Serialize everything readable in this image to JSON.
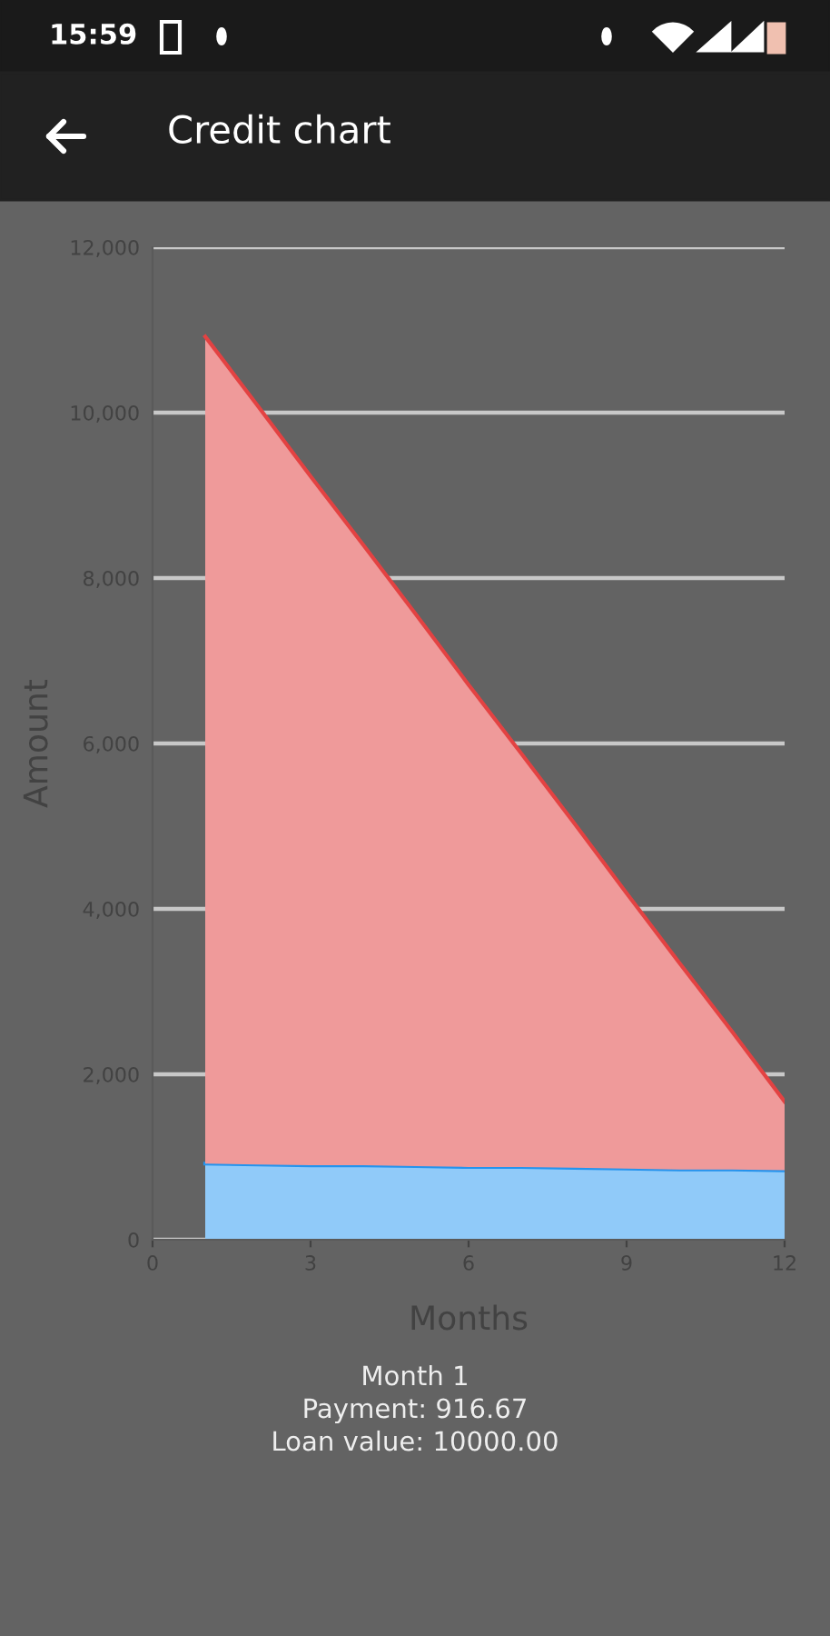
{
  "chart_data": {
    "type": "area",
    "title": "Credit chart",
    "xlabel": "Months",
    "ylabel": "Amount",
    "annotations": [
      "15:59",
      "Month 1",
      "Payment: 916.67",
      "Loan value: 10000.00"
    ],
    "x": [
      1,
      2,
      3,
      4,
      5,
      6,
      7,
      8,
      9,
      10,
      11,
      12
    ],
    "stacked": true,
    "series": [
      {
        "color": "#90caf9",
        "values": [
          920,
          910,
          900,
          900,
          890,
          880,
          880,
          870,
          860,
          850,
          850,
          840
        ]
      },
      {
        "color": "#ef9a9a",
        "values": [
          10000,
          9170,
          8330,
          7500,
          6670,
          5830,
          5000,
          4170,
          3330,
          2500,
          1670,
          830
        ]
      }
    ],
    "xlim": [
      0,
      12
    ],
    "xticks": [
      0,
      3,
      6,
      9,
      12
    ],
    "ylim": [
      0,
      12000
    ],
    "yticks": [
      0,
      {
        "value": 2000,
        "label": "2,000"
      },
      {
        "value": 4000,
        "label": "4,000"
      },
      {
        "value": 6000,
        "label": "6,000"
      },
      {
        "value": 8000,
        "label": "8,000"
      },
      {
        "value": 10000,
        "label": "10,000"
      },
      {
        "value": 12000,
        "label": "12,000"
      }
    ],
    "grid": "y"
  }
}
